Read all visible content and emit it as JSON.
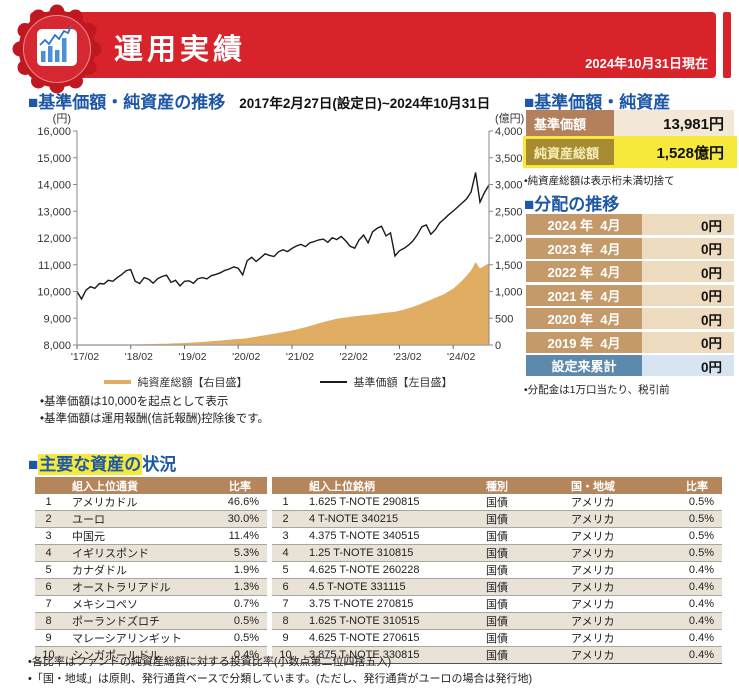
{
  "colors": {
    "accent_red": "#d8232b",
    "heading_blue": "#1d57a5",
    "table_header_brown": "#b5855c",
    "label_tan": "#c49a6a",
    "price_label_brown": "#b3805b",
    "value_beige": "#f3e8d6",
    "value_tan": "#eedcc0",
    "total_label_blue": "#5d89ac",
    "total_value_blue": "#d7e5f2",
    "highlight_yellow": "#f6e93c",
    "highlight_label_olive": "#a68b33",
    "area_tan": "#e0ad62",
    "line_black": "#1a1a1a",
    "row_alt_gray": "#e8e2d7"
  },
  "header": {
    "title": "運用実績",
    "as_of": "2024年10月31日現在",
    "badge_icon": "bar-chart-seal-icon"
  },
  "performance_section": {
    "heading": "■基準価額・純資産の推移",
    "period": "2017年2月27日(設定日)~2024年10月31日",
    "legend": [
      {
        "label": "純資産総額【右目盛】"
      },
      {
        "label": "基準価額【左目盛】"
      }
    ],
    "notes": [
      "•基準価額は10,000を起点として表示",
      "•基準価額は運用報酬(信託報酬)控除後です。"
    ]
  },
  "chart_data": {
    "type": "line",
    "title": "基準価額・純資産の推移",
    "x_range": [
      0,
      92
    ],
    "x_ticks": [
      "'17/02",
      "'18/02",
      "'19/02",
      "'20/02",
      "'21/02",
      "'22/02",
      "'23/02",
      "'24/02"
    ],
    "x_tick_positions": [
      0,
      12,
      24,
      36,
      48,
      60,
      72,
      84
    ],
    "left_axis": {
      "unit": "(円)",
      "min": 8000,
      "max": 16000,
      "step": 1000
    },
    "right_axis": {
      "unit": "(億円)",
      "min": 0,
      "max": 4000,
      "step": 500
    },
    "grid": false,
    "legend_position": "bottom",
    "series": [
      {
        "name": "基準価額【左目盛】",
        "type": "line",
        "axis": "left",
        "color": "#1a1a1a",
        "values": [
          10000,
          9720,
          10050,
          10180,
          10120,
          10300,
          10280,
          10420,
          10380,
          10520,
          10640,
          10780,
          10820,
          10380,
          10300,
          10520,
          10460,
          10310,
          10480,
          10560,
          10610,
          10340,
          10420,
          10210,
          10380,
          10400,
          10310,
          10480,
          10520,
          10470,
          10590,
          10640,
          10700,
          10790,
          10840,
          10920,
          10870,
          10620,
          11150,
          11280,
          11120,
          11260,
          11410,
          11350,
          11310,
          11480,
          11560,
          11490,
          11610,
          11700,
          11760,
          11680,
          11820,
          11870,
          11930,
          11960,
          11840,
          12010,
          11940,
          12060,
          11890,
          11690,
          11620,
          11930,
          12110,
          11820,
          12230,
          12360,
          12440,
          12080,
          12190,
          11330,
          11520,
          11610,
          11730,
          11890,
          12120,
          12420,
          12490,
          12140,
          12310,
          12560,
          12710,
          12870,
          13010,
          13160,
          13310,
          13460,
          13720,
          14450,
          13340,
          13700,
          13981
        ]
      },
      {
        "name": "純資産総額【右目盛】",
        "type": "area",
        "axis": "right",
        "color": "#e0ad62",
        "values": [
          1,
          1,
          2,
          2,
          3,
          3,
          4,
          4,
          5,
          6,
          7,
          8,
          9,
          10,
          12,
          14,
          16,
          18,
          20,
          22,
          25,
          28,
          31,
          34,
          38,
          42,
          47,
          52,
          57,
          63,
          69,
          76,
          83,
          91,
          99,
          107,
          113,
          118,
          128,
          142,
          156,
          170,
          184,
          198,
          212,
          227,
          242,
          256,
          271,
          290,
          310,
          331,
          355,
          380,
          405,
          428,
          450,
          470,
          490,
          502,
          514,
          526,
          538,
          548,
          556,
          563,
          571,
          581,
          594,
          605,
          614,
          622,
          641,
          662,
          686,
          712,
          742,
          776,
          812,
          846,
          882,
          916,
          952,
          1005,
          1055,
          1125,
          1205,
          1295,
          1395,
          1550,
          1430,
          1480,
          1528
        ]
      }
    ]
  },
  "price_section": {
    "heading": "■基準価額・純資産",
    "rows": [
      {
        "label": "基準価額",
        "value": "13,981円"
      },
      {
        "label": "純資産総額",
        "value": "1,528億円"
      }
    ],
    "note": "•純資産総額は表示桁未満切捨て"
  },
  "distribution_section": {
    "heading": "■分配の推移",
    "rows": [
      {
        "label": "2024 年  4月",
        "value": "0円"
      },
      {
        "label": "2023 年  4月",
        "value": "0円"
      },
      {
        "label": "2022 年  4月",
        "value": "0円"
      },
      {
        "label": "2021 年  4月",
        "value": "0円"
      },
      {
        "label": "2020 年  4月",
        "value": "0円"
      },
      {
        "label": "2019 年  4月",
        "value": "0円"
      }
    ],
    "total": {
      "label": "設定来累計",
      "value": "0円"
    },
    "note": "•分配金は1万口当たり、税引前"
  },
  "assets_section": {
    "heading_prefix": "■",
    "heading_highlight": "主要な資産の",
    "heading_rest": "状況",
    "currency_table": {
      "headers": {
        "name": "組入上位通貨",
        "pct": "比率"
      },
      "rows": [
        [
          "1",
          "アメリカドル",
          "46.6%"
        ],
        [
          "2",
          "ユーロ",
          "30.0%"
        ],
        [
          "3",
          "中国元",
          "11.4%"
        ],
        [
          "4",
          "イギリスポンド",
          "5.3%"
        ],
        [
          "5",
          "カナダドル",
          "1.9%"
        ],
        [
          "6",
          "オーストラリアドル",
          "1.3%"
        ],
        [
          "7",
          "メキシコペソ",
          "0.7%"
        ],
        [
          "8",
          "ポーランドズロチ",
          "0.5%"
        ],
        [
          "9",
          "マレーシアリンギット",
          "0.5%"
        ],
        [
          "10",
          "シンガポールドル",
          "0.4%"
        ]
      ]
    },
    "securities_table": {
      "headers": {
        "name": "組入上位銘柄",
        "type": "種別",
        "region": "国・地域",
        "pct": "比率"
      },
      "rows": [
        [
          "1",
          "1.625 T-NOTE 290815",
          "国債",
          "アメリカ",
          "0.5%"
        ],
        [
          "2",
          "4 T-NOTE 340215",
          "国債",
          "アメリカ",
          "0.5%"
        ],
        [
          "3",
          "4.375 T-NOTE 340515",
          "国債",
          "アメリカ",
          "0.5%"
        ],
        [
          "4",
          "1.25 T-NOTE 310815",
          "国債",
          "アメリカ",
          "0.5%"
        ],
        [
          "5",
          "4.625 T-NOTE 260228",
          "国債",
          "アメリカ",
          "0.4%"
        ],
        [
          "6",
          "4.5 T-NOTE 331115",
          "国債",
          "アメリカ",
          "0.4%"
        ],
        [
          "7",
          "3.75 T-NOTE 270815",
          "国債",
          "アメリカ",
          "0.4%"
        ],
        [
          "8",
          "1.625 T-NOTE 310515",
          "国債",
          "アメリカ",
          "0.4%"
        ],
        [
          "9",
          "4.625 T-NOTE 270615",
          "国債",
          "アメリカ",
          "0.4%"
        ],
        [
          "10",
          "3.875 T-NOTE 330815",
          "国債",
          "アメリカ",
          "0.4%"
        ]
      ]
    },
    "notes": [
      "•各比率はファンドの純資産総額に対する投資比率(小数点第二位四捨五入)",
      "•「国・地域」は原則、発行通貨ベースで分類しています。(ただし、発行通貨がユーロの場合は発行地)"
    ]
  }
}
